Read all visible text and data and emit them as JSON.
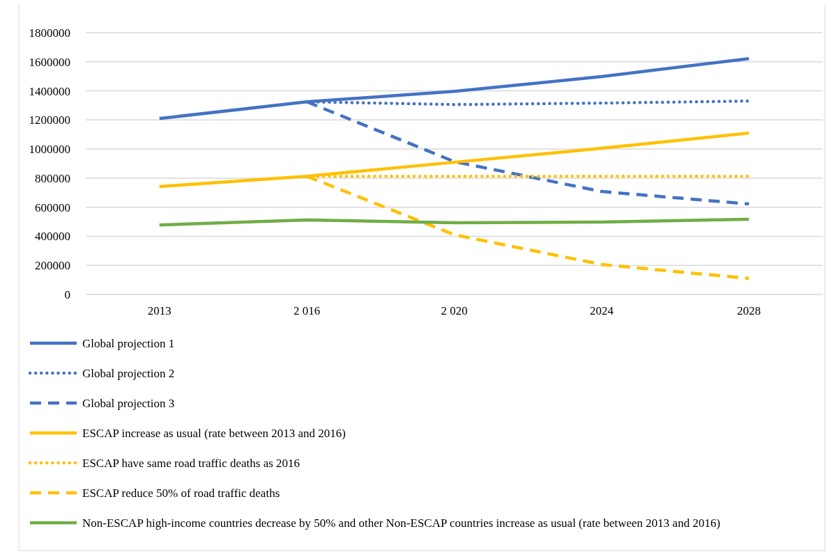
{
  "chart_data": {
    "type": "line",
    "categories": [
      "2013",
      "2 016",
      "2 020",
      "2024",
      "2028"
    ],
    "ylim": [
      0,
      1800000
    ],
    "yticks": [
      0,
      200000,
      400000,
      600000,
      800000,
      1000000,
      1200000,
      1400000,
      1600000,
      1800000
    ],
    "grid": "y",
    "legend": "bottom",
    "marker": "none",
    "series": [
      {
        "name": "Global projection 1",
        "color": "#4472c4",
        "line_style": "solid",
        "values": [
          1210000,
          1325000,
          1397000,
          1498000,
          1622000
        ]
      },
      {
        "name": "Global projection 2",
        "color": "#4472c4",
        "line_style": "dotted",
        "values": [
          null,
          1325000,
          1306000,
          1316000,
          1330000
        ]
      },
      {
        "name": "Global projection 3",
        "color": "#4472c4",
        "line_style": "dashed",
        "values": [
          null,
          1325000,
          914000,
          708000,
          622000
        ]
      },
      {
        "name": "ESCAP increase as usual (rate between 2013 and 2016)",
        "color": "#ffc000",
        "line_style": "solid",
        "values": [
          742000,
          813000,
          909000,
          1005000,
          1110000
        ]
      },
      {
        "name": "ESCAP have same road traffic deaths as 2016",
        "color": "#ffc000",
        "line_style": "dotted",
        "values": [
          null,
          813000,
          813000,
          813000,
          813000
        ]
      },
      {
        "name": "ESCAP reduce 50% of road traffic deaths",
        "color": "#ffc000",
        "line_style": "dashed",
        "values": [
          null,
          813000,
          411000,
          206000,
          110000
        ]
      },
      {
        "name": "Non-ESCAP high-income countries decrease by 50% and other Non-ESCAP countries increase as usual (rate between 2013 and 2016)",
        "color": "#70ad47",
        "line_style": "solid",
        "values": [
          478000,
          512000,
          493000,
          498000,
          517000
        ]
      }
    ]
  }
}
